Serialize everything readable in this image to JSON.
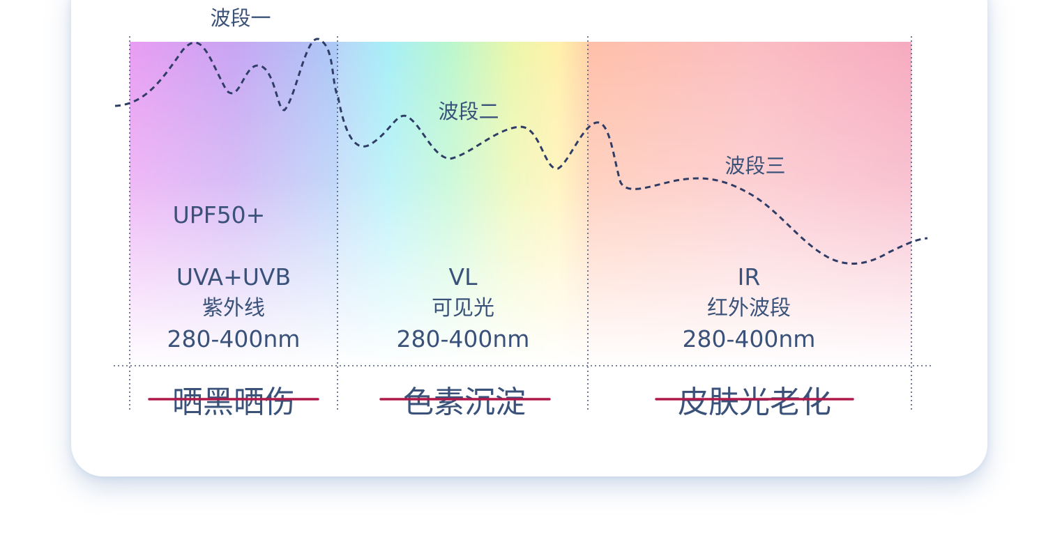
{
  "bands": [
    {
      "wave_label": "波段一",
      "rating": "UPF50+",
      "code": "UVA+UVB",
      "name": "紫外线",
      "range": "280-400nm",
      "effect": "晒黑晒伤"
    },
    {
      "wave_label": "波段二",
      "code": "VL",
      "name": "可见光",
      "range": "280-400nm",
      "effect": "色素沉淀"
    },
    {
      "wave_label": "波段三",
      "code": "IR",
      "name": "红外波段",
      "range": "280-400nm",
      "effect": "皮肤光老化"
    }
  ],
  "colors": {
    "text": "#3a5279",
    "strike": "#b0184a",
    "curve": "#2f3d66"
  }
}
